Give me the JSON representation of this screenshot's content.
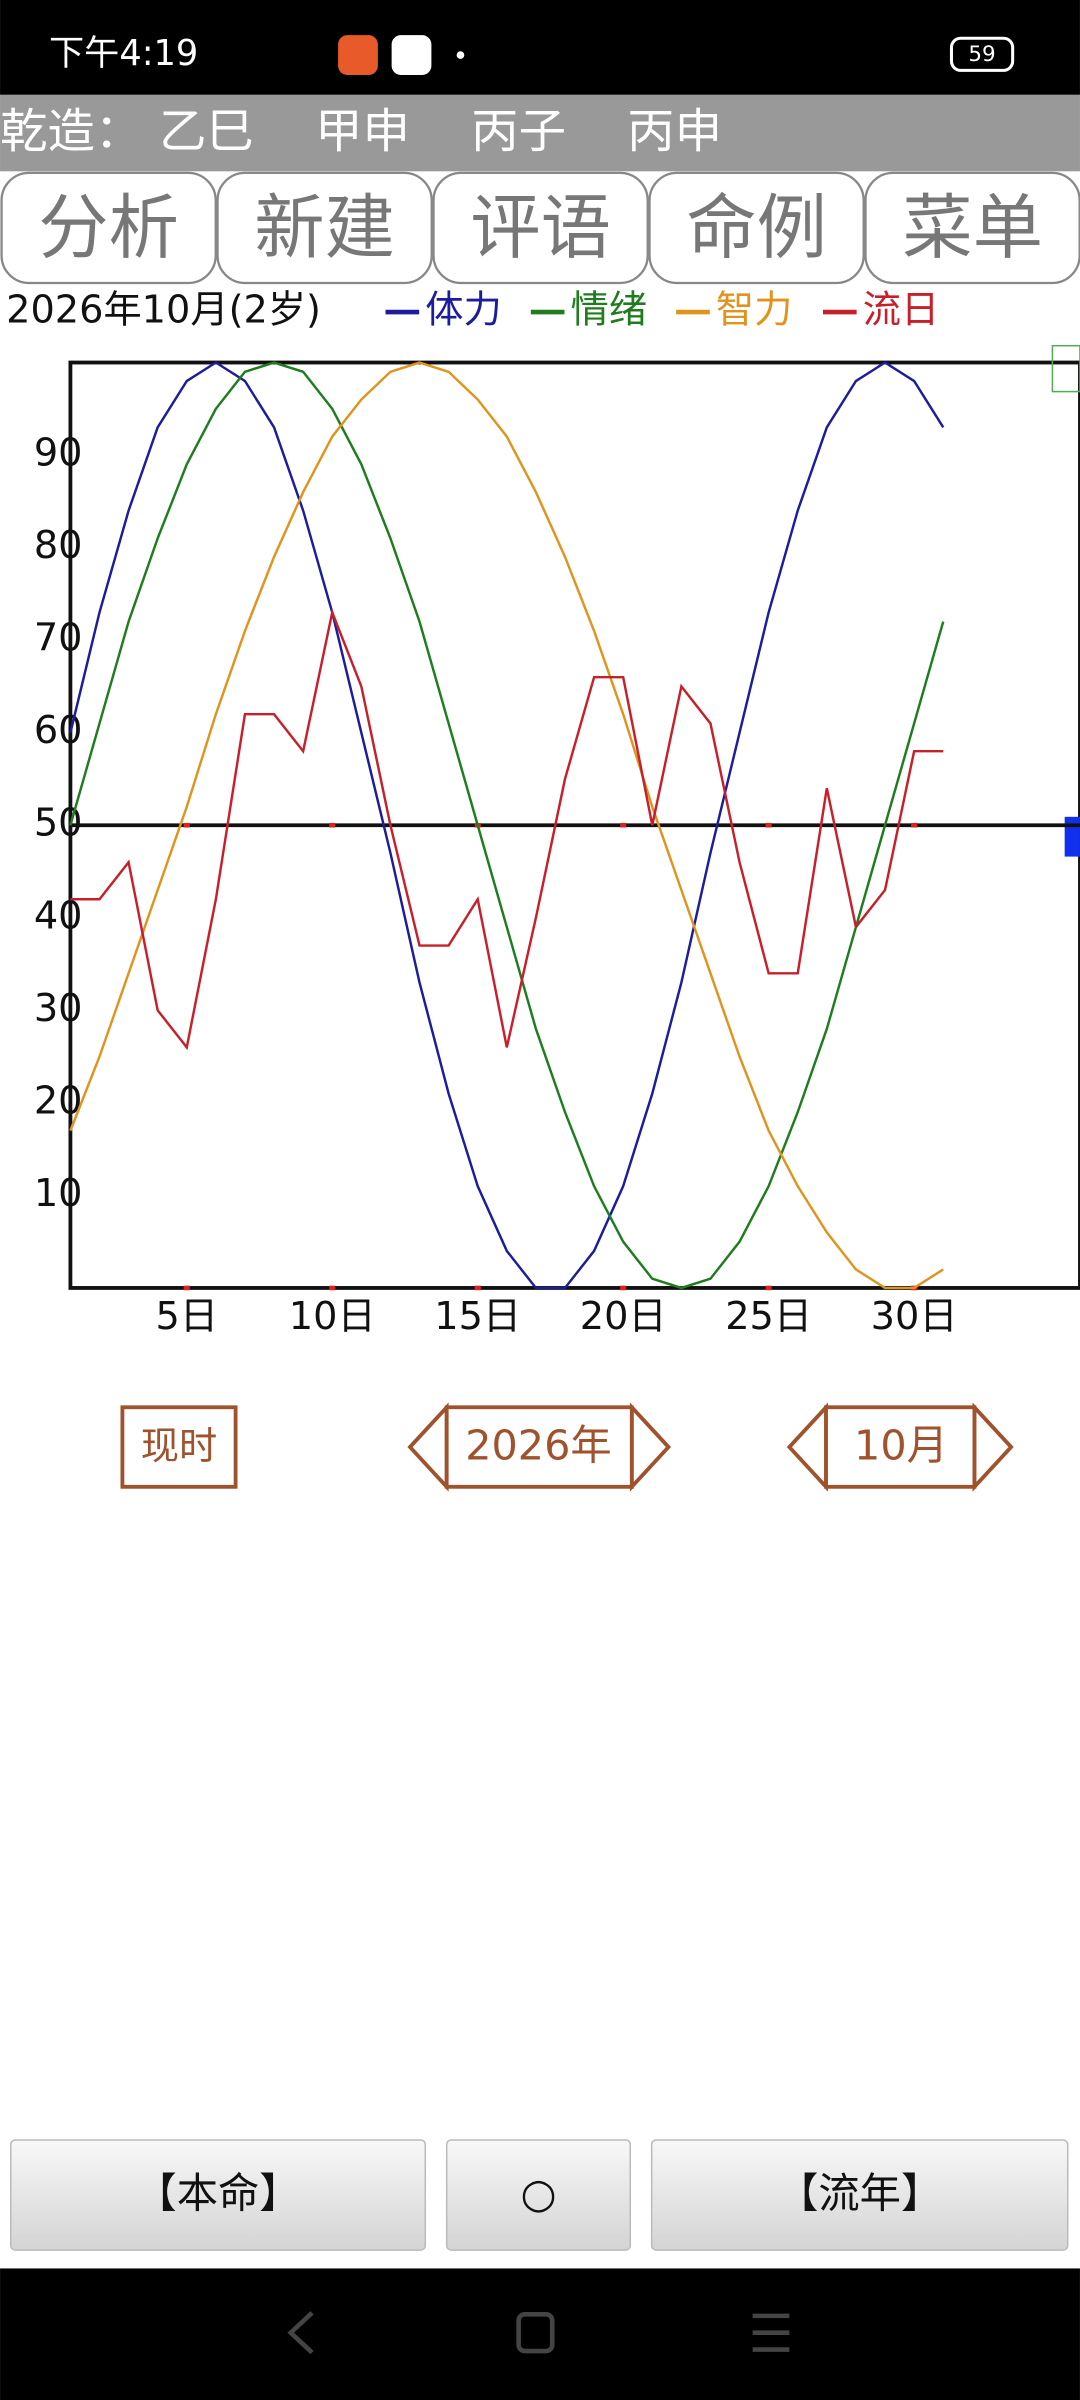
{
  "status_bar": {
    "time": "下午4:19",
    "battery": "59"
  },
  "header": {
    "label": "乾造：",
    "pillars": [
      "乙巳",
      "甲申",
      "丙子",
      "丙申"
    ]
  },
  "tabs": [
    "分析",
    "新建",
    "评语",
    "命例",
    "菜单"
  ],
  "chart_data": {
    "type": "line",
    "title": "2026年10月(2岁)",
    "x": [
      1,
      2,
      3,
      4,
      5,
      6,
      7,
      8,
      9,
      10,
      11,
      12,
      13,
      14,
      15,
      16,
      17,
      18,
      19,
      20,
      21,
      22,
      23,
      24,
      25,
      26,
      27,
      28,
      29,
      30,
      31
    ],
    "xlim": [
      1,
      35.7
    ],
    "xticks": [
      {
        "value": 5,
        "label": "5日"
      },
      {
        "value": 10,
        "label": "10日"
      },
      {
        "value": 15,
        "label": "15日"
      },
      {
        "value": 20,
        "label": "20日"
      },
      {
        "value": 25,
        "label": "25日"
      },
      {
        "value": 30,
        "label": "30日"
      }
    ],
    "ylim": [
      0,
      100
    ],
    "yticks": [
      10,
      20,
      30,
      40,
      50,
      60,
      70,
      80,
      90
    ],
    "reference_line": 50,
    "series": [
      {
        "name": "体力",
        "color": "#1c1c9c",
        "values": [
          60,
          73,
          84,
          93,
          98,
          100,
          98,
          93,
          84,
          73,
          60,
          47,
          33,
          21,
          11,
          4,
          0,
          0,
          4,
          11,
          21,
          33,
          47,
          60,
          73,
          84,
          93,
          98,
          100,
          98,
          93
        ]
      },
      {
        "name": "情绪",
        "color": "#1f7d1f",
        "values": [
          50,
          61,
          72,
          81,
          89,
          95,
          99,
          100,
          99,
          95,
          89,
          81,
          72,
          61,
          50,
          39,
          28,
          19,
          11,
          5,
          1,
          0,
          1,
          5,
          11,
          19,
          28,
          39,
          50,
          61,
          72
        ]
      },
      {
        "name": "智力",
        "color": "#e0941e",
        "values": [
          17,
          25,
          34,
          43,
          52,
          62,
          71,
          79,
          86,
          92,
          96,
          99,
          100,
          99,
          96,
          92,
          86,
          79,
          71,
          62,
          52,
          43,
          34,
          25,
          17,
          11,
          6,
          2,
          0,
          0,
          2
        ]
      },
      {
        "name": "流日",
        "color": "#c8202a",
        "values": [
          42,
          42,
          46,
          30,
          26,
          42,
          62,
          62,
          58,
          73,
          65,
          50,
          37,
          37,
          42,
          26,
          40,
          55,
          66,
          66,
          50,
          65,
          61,
          46,
          34,
          34,
          54,
          39,
          43,
          58,
          58
        ]
      }
    ]
  },
  "controls": {
    "now": "现时",
    "year": "2026年",
    "month": "10月"
  },
  "bottom_buttons": [
    "【本命】",
    "○",
    "【流年】"
  ]
}
